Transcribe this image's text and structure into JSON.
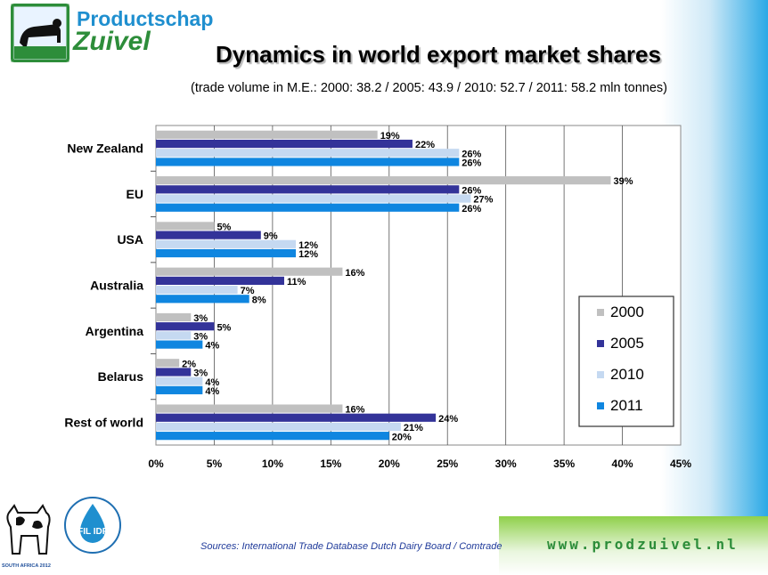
{
  "branding": {
    "name_line1": "Productschap",
    "name_line2": "Zuivel",
    "website": "www.prodzuivel.nl",
    "idf_text": "FIL  IDF",
    "event_caption": "SOUTH AFRICA 2012"
  },
  "header": {
    "title": "Dynamics in world export market shares",
    "subtitle": "(trade volume in M.E.: 2000: 38.2 / 2005: 43.9 / 2010: 52.7 / 2011: 58.2 mln tonnes)"
  },
  "footer": {
    "source": "Sources: International Trade Database Dutch Dairy Board / Comtrade"
  },
  "chart_data": {
    "type": "bar",
    "orientation": "horizontal",
    "categories": [
      "New Zealand",
      "EU",
      "USA",
      "Australia",
      "Argentina",
      "Belarus",
      "Rest of world"
    ],
    "series": [
      {
        "name": "2000",
        "color": "#c0c0c0",
        "values": [
          19,
          39,
          5,
          16,
          3,
          2,
          16
        ]
      },
      {
        "name": "2005",
        "color": "#333399",
        "values": [
          22,
          26,
          9,
          11,
          5,
          3,
          24
        ]
      },
      {
        "name": "2010",
        "color": "#c5d9f1",
        "values": [
          26,
          27,
          12,
          7,
          3,
          4,
          21
        ]
      },
      {
        "name": "2011",
        "color": "#0f86e0",
        "values": [
          26,
          26,
          12,
          8,
          4,
          4,
          20
        ]
      }
    ],
    "value_suffix": "%",
    "xlim": [
      0,
      45
    ],
    "xticks": [
      0,
      5,
      10,
      15,
      20,
      25,
      30,
      35,
      40,
      45
    ],
    "xtick_labels": [
      "0%",
      "5%",
      "10%",
      "15%",
      "20%",
      "25%",
      "30%",
      "35%",
      "40%",
      "45%"
    ],
    "grid": "vertical",
    "legend_position": "lower-right"
  }
}
